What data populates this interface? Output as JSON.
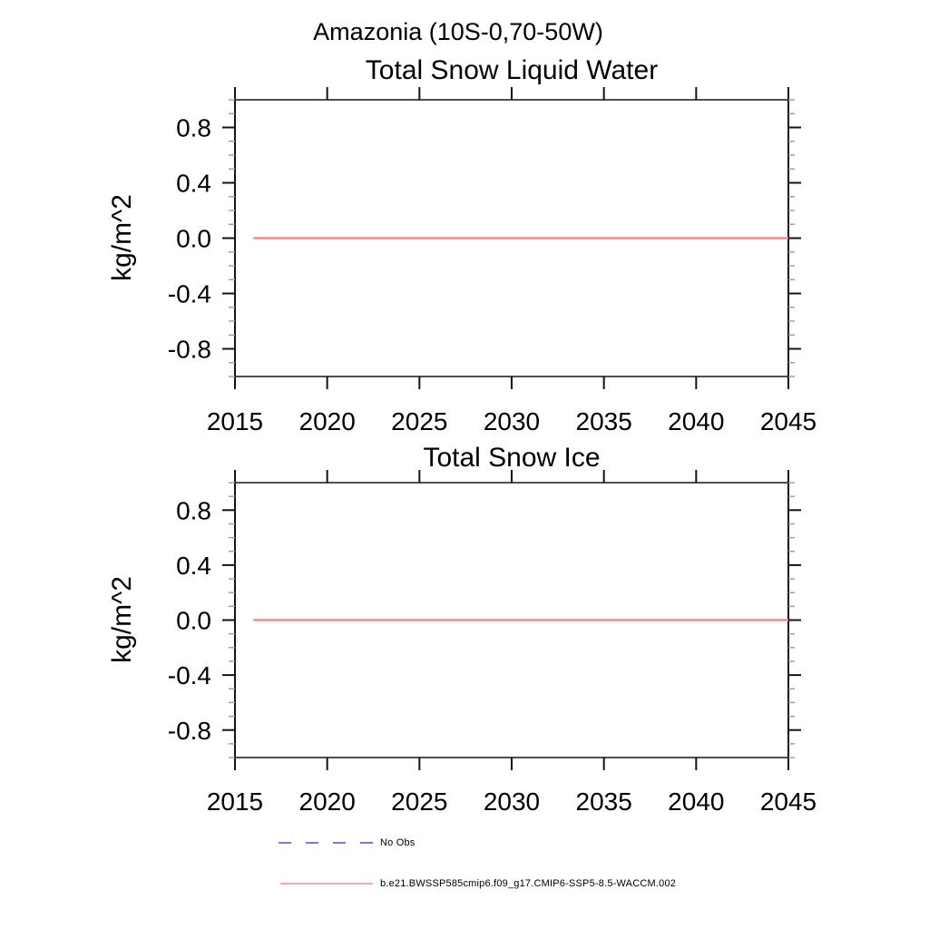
{
  "header": {
    "title": "Amazonia (10S-0,70-50W)"
  },
  "chart_data": [
    {
      "type": "line",
      "title": "Total Snow Liquid Water",
      "xlabel": "",
      "ylabel": "kg/m^2",
      "xlim": [
        2015,
        2045
      ],
      "ylim": [
        -1.0,
        1.0
      ],
      "grid": false,
      "x_major_ticks": [
        2015,
        2020,
        2025,
        2030,
        2035,
        2040,
        2045
      ],
      "x_tick_labels": [
        "2015",
        "2020",
        "2025",
        "2030",
        "2035",
        "2040",
        "2045"
      ],
      "y_major_ticks": [
        0.8,
        0.4,
        0.0,
        -0.4,
        -0.8
      ],
      "y_tick_labels": [
        "0.8",
        "0.4",
        "0.0",
        "-0.4",
        "-0.8"
      ],
      "y_minor_tick_step": 0.1,
      "series": [
        {
          "name": "b.e21.BWSSP585cmip6.f09_g17.CMIP6-SSP5-8.5-WACCM.002",
          "color": "#fa8888",
          "style": "solid",
          "x": [
            2016,
            2045
          ],
          "y": [
            0.0,
            0.0
          ]
        }
      ]
    },
    {
      "type": "line",
      "title": "Total Snow Ice",
      "xlabel": "",
      "ylabel": "kg/m^2",
      "xlim": [
        2015,
        2045
      ],
      "ylim": [
        -1.0,
        1.0
      ],
      "grid": false,
      "x_major_ticks": [
        2015,
        2020,
        2025,
        2030,
        2035,
        2040,
        2045
      ],
      "x_tick_labels": [
        "2015",
        "2020",
        "2025",
        "2030",
        "2035",
        "2040",
        "2045"
      ],
      "y_major_ticks": [
        0.8,
        0.4,
        0.0,
        -0.4,
        -0.8
      ],
      "y_tick_labels": [
        "0.8",
        "0.4",
        "0.0",
        "-0.4",
        "-0.8"
      ],
      "y_minor_tick_step": 0.1,
      "series": [
        {
          "name": "b.e21.BWSSP585cmip6.f09_g17.CMIP6-SSP5-8.5-WACCM.002",
          "color": "#fa8888",
          "style": "solid",
          "x": [
            2016,
            2045
          ],
          "y": [
            0.0,
            0.0
          ]
        }
      ]
    }
  ],
  "legend": {
    "position": "bottom-left",
    "items": [
      {
        "label": "No Obs",
        "color": "#7878e0",
        "style": "dashed"
      },
      {
        "label": "b.e21.BWSSP585cmip6.f09_g17.CMIP6-SSP5-8.5-WACCM.002",
        "color": "#fa8888",
        "style": "solid"
      }
    ]
  }
}
